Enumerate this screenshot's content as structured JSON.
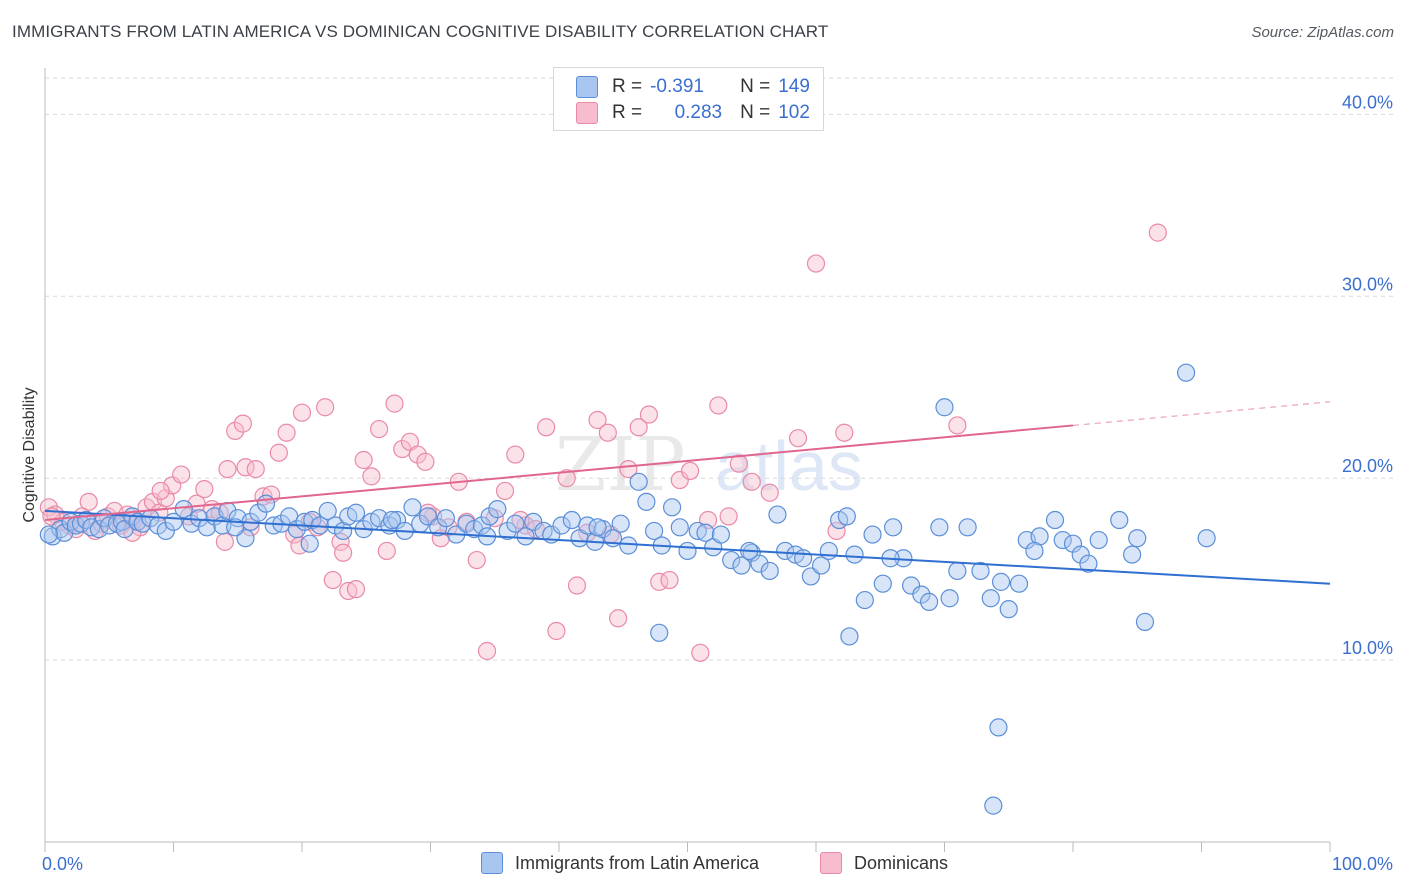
{
  "title": "IMMIGRANTS FROM LATIN AMERICA VS DOMINICAN COGNITIVE DISABILITY CORRELATION CHART",
  "source": "Source: ZipAtlas.com",
  "watermark": {
    "zip": "ZIP",
    "atlas": "atlas"
  },
  "legend_top": {
    "rows": [
      {
        "r_label": "R =",
        "r_value": "-0.391",
        "n_label": "N =",
        "n_value": "149"
      },
      {
        "r_label": "R =",
        "r_value": "0.283",
        "n_label": "N =",
        "n_value": "102"
      }
    ]
  },
  "colors": {
    "blue_fill": "#a9c6f0",
    "blue_stroke": "#5b8fd8",
    "blue_line": "#2f6fd0",
    "pink_fill": "#f7bccd",
    "pink_stroke": "#e98aa8",
    "pink_line": "#e0668f",
    "axis_text": "#3a6fd0",
    "grid": "#d9d9d9"
  },
  "chart_data": {
    "type": "scatter",
    "title": "IMMIGRANTS FROM LATIN AMERICA VS DOMINICAN COGNITIVE DISABILITY CORRELATION CHART",
    "xlabel": "",
    "ylabel": "Cognitive Disability",
    "xlim": [
      0,
      100
    ],
    "ylim": [
      0,
      42
    ],
    "x_tick_labels": [
      "0.0%",
      "100.0%"
    ],
    "y_ticks": [
      10,
      20,
      30,
      40
    ],
    "y_tick_labels": [
      "10.0%",
      "20.0%",
      "30.0%",
      "40.0%"
    ],
    "grid": "horizontal dashed",
    "legend_placement": "bottom",
    "series": [
      {
        "name": "Immigrants from Latin America",
        "color": "#5b8fd8",
        "trend": {
          "x": [
            0,
            100
          ],
          "y": [
            18.2,
            14.2
          ]
        },
        "points": [
          [
            0.6,
            16.8
          ],
          [
            1.2,
            17.2
          ],
          [
            1.5,
            17.0
          ],
          [
            2.0,
            17.6
          ],
          [
            2.4,
            17.4
          ],
          [
            2.8,
            17.5
          ],
          [
            3.2,
            17.7
          ],
          [
            3.6,
            17.3
          ],
          [
            4.2,
            17.2
          ],
          [
            4.6,
            17.8
          ],
          [
            5.0,
            17.4
          ],
          [
            5.6,
            17.5
          ],
          [
            6.0,
            17.6
          ],
          [
            6.2,
            17.2
          ],
          [
            6.8,
            17.9
          ],
          [
            7.2,
            17.6
          ],
          [
            7.6,
            17.5
          ],
          [
            8.2,
            17.8
          ],
          [
            8.8,
            17.4
          ],
          [
            9.4,
            17.1
          ],
          [
            10.0,
            17.6
          ],
          [
            10.8,
            18.3
          ],
          [
            11.4,
            17.5
          ],
          [
            12.0,
            17.8
          ],
          [
            12.6,
            17.3
          ],
          [
            13.2,
            17.9
          ],
          [
            13.8,
            17.4
          ],
          [
            14.2,
            18.2
          ],
          [
            15.0,
            17.8
          ],
          [
            15.6,
            16.7
          ],
          [
            16.0,
            17.6
          ],
          [
            16.6,
            18.1
          ],
          [
            17.2,
            18.6
          ],
          [
            17.8,
            17.4
          ],
          [
            18.4,
            17.5
          ],
          [
            19.0,
            17.9
          ],
          [
            19.6,
            17.2
          ],
          [
            20.2,
            17.6
          ],
          [
            20.8,
            17.7
          ],
          [
            21.4,
            17.4
          ],
          [
            22.0,
            18.2
          ],
          [
            22.6,
            17.4
          ],
          [
            23.2,
            17.1
          ],
          [
            23.6,
            17.9
          ],
          [
            24.2,
            18.1
          ],
          [
            24.8,
            17.2
          ],
          [
            25.4,
            17.6
          ],
          [
            26.0,
            17.8
          ],
          [
            26.8,
            17.4
          ],
          [
            27.4,
            17.7
          ],
          [
            28.0,
            17.1
          ],
          [
            28.6,
            18.4
          ],
          [
            29.2,
            17.5
          ],
          [
            29.8,
            17.9
          ],
          [
            30.6,
            17.3
          ],
          [
            31.2,
            17.8
          ],
          [
            32.0,
            16.9
          ],
          [
            32.8,
            17.5
          ],
          [
            33.4,
            17.2
          ],
          [
            34.0,
            17.4
          ],
          [
            34.6,
            17.9
          ],
          [
            35.2,
            18.3
          ],
          [
            36.0,
            17.1
          ],
          [
            36.6,
            17.5
          ],
          [
            37.4,
            16.8
          ],
          [
            38.0,
            17.6
          ],
          [
            38.8,
            17.1
          ],
          [
            39.4,
            16.9
          ],
          [
            40.2,
            17.4
          ],
          [
            41.0,
            17.7
          ],
          [
            41.6,
            16.7
          ],
          [
            42.2,
            17.4
          ],
          [
            42.8,
            16.5
          ],
          [
            43.4,
            17.2
          ],
          [
            44.2,
            16.7
          ],
          [
            44.8,
            17.5
          ],
          [
            45.4,
            16.3
          ],
          [
            46.2,
            19.8
          ],
          [
            46.8,
            18.7
          ],
          [
            47.4,
            17.1
          ],
          [
            48.0,
            16.3
          ],
          [
            48.8,
            18.4
          ],
          [
            49.4,
            17.3
          ],
          [
            50.0,
            16.0
          ],
          [
            50.8,
            17.1
          ],
          [
            51.4,
            17.0
          ],
          [
            52.0,
            16.2
          ],
          [
            52.6,
            16.9
          ],
          [
            53.4,
            15.5
          ],
          [
            54.2,
            15.2
          ],
          [
            55.0,
            15.9
          ],
          [
            55.6,
            15.3
          ],
          [
            56.4,
            14.9
          ],
          [
            57.0,
            18.0
          ],
          [
            57.6,
            16.0
          ],
          [
            58.4,
            15.8
          ],
          [
            59.0,
            15.6
          ],
          [
            59.6,
            14.6
          ],
          [
            60.4,
            15.2
          ],
          [
            61.0,
            16.0
          ],
          [
            61.8,
            17.7
          ],
          [
            62.4,
            17.9
          ],
          [
            63.0,
            15.8
          ],
          [
            63.8,
            13.3
          ],
          [
            64.4,
            16.9
          ],
          [
            65.2,
            14.2
          ],
          [
            66.0,
            17.3
          ],
          [
            66.8,
            15.6
          ],
          [
            67.4,
            14.1
          ],
          [
            68.2,
            13.6
          ],
          [
            68.8,
            13.2
          ],
          [
            69.6,
            17.3
          ],
          [
            70.4,
            13.4
          ],
          [
            71.0,
            14.9
          ],
          [
            71.8,
            17.3
          ],
          [
            72.8,
            14.9
          ],
          [
            73.6,
            13.4
          ],
          [
            74.4,
            14.3
          ],
          [
            75.0,
            12.8
          ],
          [
            75.8,
            14.2
          ],
          [
            76.4,
            16.6
          ],
          [
            77.4,
            16.8
          ],
          [
            78.6,
            17.7
          ],
          [
            79.2,
            16.6
          ],
          [
            80.0,
            16.4
          ],
          [
            80.6,
            15.8
          ],
          [
            81.2,
            15.3
          ],
          [
            82.0,
            16.6
          ],
          [
            83.6,
            17.7
          ],
          [
            84.6,
            15.8
          ],
          [
            85.6,
            12.1
          ],
          [
            90.4,
            16.7
          ],
          [
            88.8,
            25.8
          ],
          [
            62.6,
            11.3
          ],
          [
            47.8,
            11.5
          ],
          [
            70.0,
            23.9
          ],
          [
            74.2,
            6.3
          ],
          [
            73.8,
            2.0
          ],
          [
            0.3,
            16.9
          ],
          [
            14.8,
            17.3
          ],
          [
            20.6,
            16.4
          ],
          [
            27.0,
            17.7
          ],
          [
            34.4,
            16.8
          ],
          [
            43.0,
            17.3
          ],
          [
            54.8,
            16.0
          ],
          [
            65.8,
            15.6
          ],
          [
            77.0,
            16.0
          ],
          [
            85.0,
            16.7
          ]
        ]
      },
      {
        "name": "Dominicans",
        "color": "#e98aa8",
        "trend": {
          "x": [
            0,
            80
          ],
          "y": [
            17.7,
            22.9
          ],
          "dashed_to": {
            "x": 100,
            "y": 24.2
          }
        },
        "points": [
          [
            0.3,
            18.4
          ],
          [
            0.8,
            18.0
          ],
          [
            1.4,
            17.6
          ],
          [
            1.9,
            17.4
          ],
          [
            2.4,
            17.2
          ],
          [
            2.9,
            17.9
          ],
          [
            3.4,
            18.7
          ],
          [
            3.9,
            17.1
          ],
          [
            4.4,
            17.5
          ],
          [
            4.9,
            17.9
          ],
          [
            5.4,
            18.2
          ],
          [
            5.9,
            17.4
          ],
          [
            6.4,
            18.0
          ],
          [
            6.9,
            17.7
          ],
          [
            7.4,
            17.3
          ],
          [
            7.9,
            18.4
          ],
          [
            8.4,
            18.7
          ],
          [
            8.9,
            18.1
          ],
          [
            9.4,
            18.9
          ],
          [
            9.9,
            19.6
          ],
          [
            10.6,
            20.2
          ],
          [
            11.2,
            17.9
          ],
          [
            11.8,
            18.6
          ],
          [
            12.4,
            19.4
          ],
          [
            13.0,
            18.3
          ],
          [
            13.6,
            18.1
          ],
          [
            14.2,
            20.5
          ],
          [
            14.8,
            22.6
          ],
          [
            15.4,
            23.0
          ],
          [
            15.6,
            20.6
          ],
          [
            16.0,
            17.3
          ],
          [
            16.4,
            20.5
          ],
          [
            17.0,
            19.0
          ],
          [
            17.6,
            19.1
          ],
          [
            18.2,
            21.4
          ],
          [
            18.8,
            22.5
          ],
          [
            19.4,
            16.9
          ],
          [
            20.0,
            23.6
          ],
          [
            20.6,
            17.6
          ],
          [
            21.2,
            17.3
          ],
          [
            21.8,
            23.9
          ],
          [
            22.4,
            14.4
          ],
          [
            23.0,
            16.5
          ],
          [
            23.6,
            13.8
          ],
          [
            24.2,
            13.9
          ],
          [
            24.8,
            21.0
          ],
          [
            25.4,
            20.1
          ],
          [
            26.0,
            22.7
          ],
          [
            26.6,
            16.0
          ],
          [
            27.2,
            24.1
          ],
          [
            27.8,
            21.6
          ],
          [
            28.4,
            22.0
          ],
          [
            29.0,
            21.3
          ],
          [
            29.6,
            20.9
          ],
          [
            30.2,
            17.9
          ],
          [
            30.8,
            16.7
          ],
          [
            31.4,
            17.3
          ],
          [
            32.2,
            19.8
          ],
          [
            32.8,
            17.6
          ],
          [
            33.6,
            15.5
          ],
          [
            34.4,
            10.5
          ],
          [
            35.0,
            17.8
          ],
          [
            35.8,
            19.3
          ],
          [
            36.6,
            21.3
          ],
          [
            37.4,
            17.4
          ],
          [
            38.2,
            17.2
          ],
          [
            39.0,
            22.8
          ],
          [
            39.8,
            11.6
          ],
          [
            40.6,
            20.0
          ],
          [
            41.4,
            14.1
          ],
          [
            42.2,
            17.0
          ],
          [
            43.0,
            23.2
          ],
          [
            43.8,
            22.5
          ],
          [
            44.6,
            12.3
          ],
          [
            45.4,
            20.5
          ],
          [
            46.2,
            22.8
          ],
          [
            47.0,
            23.5
          ],
          [
            47.8,
            14.3
          ],
          [
            48.6,
            14.4
          ],
          [
            49.4,
            19.9
          ],
          [
            50.2,
            20.4
          ],
          [
            51.0,
            10.4
          ],
          [
            51.6,
            17.7
          ],
          [
            52.4,
            24.0
          ],
          [
            53.2,
            17.9
          ],
          [
            54.0,
            20.8
          ],
          [
            55.0,
            19.8
          ],
          [
            56.4,
            19.2
          ],
          [
            58.6,
            22.2
          ],
          [
            60.0,
            31.8
          ],
          [
            61.6,
            17.1
          ],
          [
            62.2,
            22.5
          ],
          [
            71.0,
            22.9
          ],
          [
            86.6,
            33.5
          ],
          [
            14.0,
            16.5
          ],
          [
            23.2,
            15.9
          ],
          [
            29.8,
            18.1
          ],
          [
            37.0,
            17.7
          ],
          [
            44.0,
            16.9
          ],
          [
            0.5,
            17.9
          ],
          [
            6.8,
            17.0
          ],
          [
            9.0,
            19.3
          ],
          [
            19.8,
            16.3
          ]
        ]
      }
    ]
  },
  "bottom_legend": {
    "items": [
      {
        "label": "Immigrants from Latin America"
      },
      {
        "label": "Dominicans"
      }
    ]
  }
}
